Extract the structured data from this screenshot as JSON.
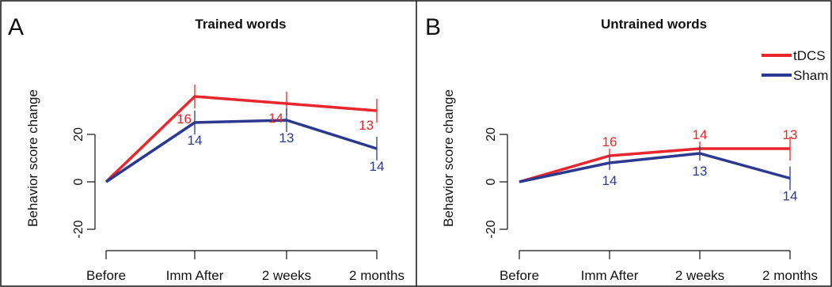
{
  "figure": {
    "panels": [
      {
        "letter": "A",
        "title": "Trained words",
        "ylabel": "Behavior score change"
      },
      {
        "letter": "B",
        "title": "Untrained words",
        "ylabel": "Behavior score change"
      }
    ],
    "legend": {
      "placement": "top-right",
      "items": [
        "tDCS",
        "Sham"
      ]
    }
  },
  "chart_data": [
    {
      "type": "line",
      "title": "Trained words",
      "panel_label": "A",
      "xlabel": "",
      "ylabel": "Behavior score change",
      "categories": [
        "Before",
        "Imm After",
        "2 weeks",
        "2 months"
      ],
      "yticks": [
        -20,
        0,
        20
      ],
      "ylim": [
        -30,
        45
      ],
      "grid": false,
      "series": [
        {
          "name": "tDCS",
          "color": "#e8262b",
          "values": [
            0,
            36,
            33,
            30
          ],
          "error": [
            null,
            5,
            5,
            5
          ],
          "n_labels": [
            "",
            "16",
            "14",
            "13"
          ],
          "label_side": "above"
        },
        {
          "name": "Sham",
          "color": "#2b3990",
          "values": [
            0,
            25,
            26,
            14
          ],
          "error": [
            null,
            5,
            5,
            5
          ],
          "n_labels": [
            "",
            "14",
            "13",
            "14"
          ],
          "label_side": "below"
        }
      ]
    },
    {
      "type": "line",
      "title": "Untrained words",
      "panel_label": "B",
      "xlabel": "",
      "ylabel": "Behavior score change",
      "categories": [
        "Before",
        "Imm After",
        "2 weeks",
        "2 months"
      ],
      "yticks": [
        -20,
        0,
        20
      ],
      "ylim": [
        -30,
        45
      ],
      "grid": false,
      "legend": [
        "tDCS",
        "Sham"
      ],
      "series": [
        {
          "name": "tDCS",
          "color": "#e8262b",
          "values": [
            0,
            11,
            14,
            14
          ],
          "error": [
            null,
            3,
            3,
            5
          ],
          "n_labels": [
            "",
            "16",
            "14",
            "13"
          ],
          "label_side": "above"
        },
        {
          "name": "Sham",
          "color": "#2b3990",
          "values": [
            0,
            8,
            12,
            1.5
          ],
          "error": [
            null,
            3,
            3,
            5
          ],
          "n_labels": [
            "",
            "14",
            "13",
            "14"
          ],
          "label_side": "below"
        }
      ]
    }
  ]
}
